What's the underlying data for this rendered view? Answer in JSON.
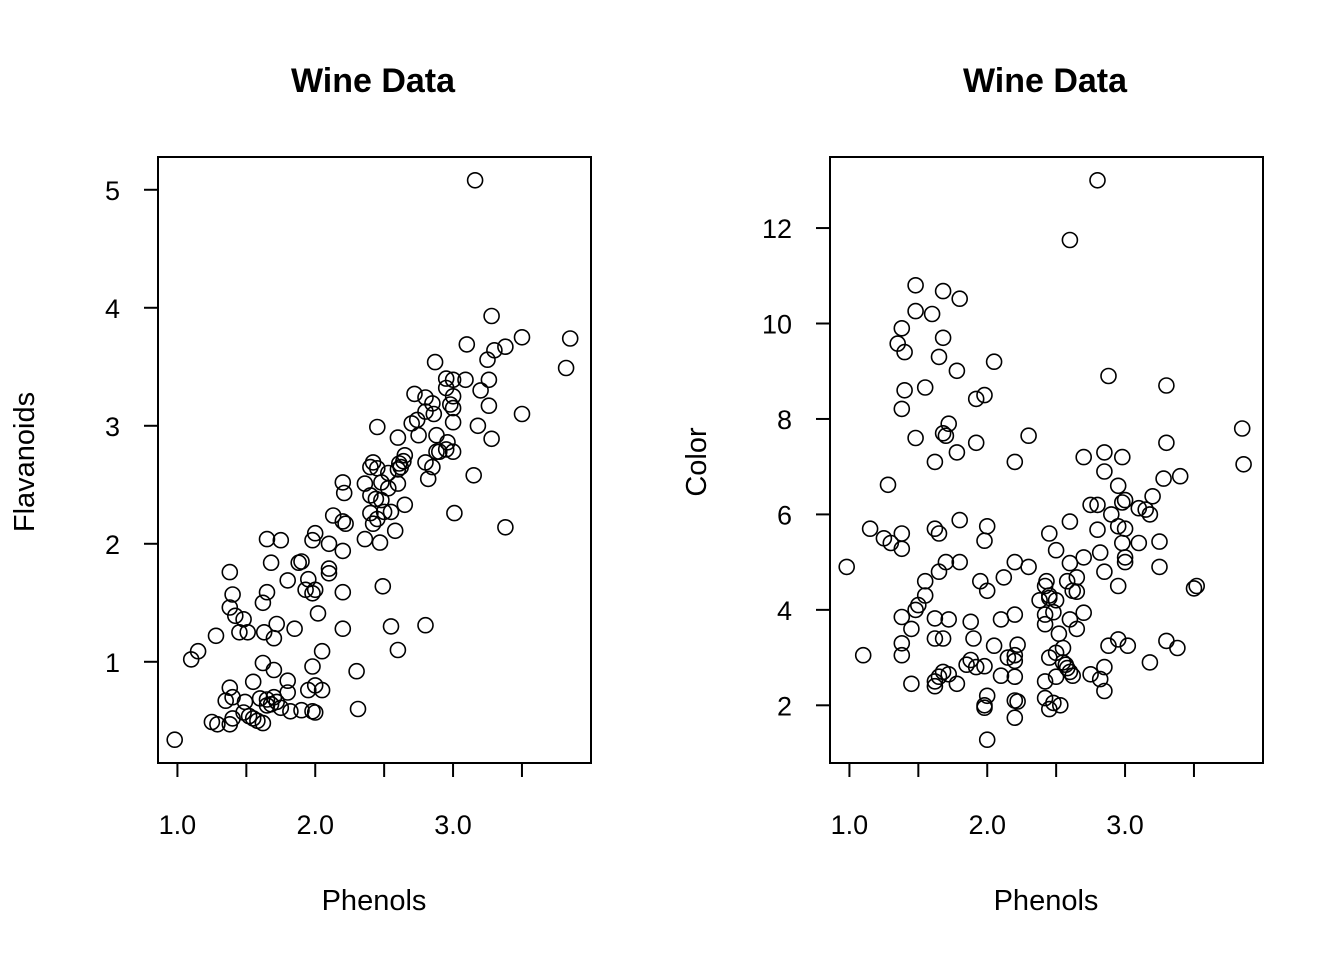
{
  "chart_data": [
    {
      "type": "scatter",
      "title": "Wine Data",
      "xlabel": "Phenols",
      "ylabel": "Flavanoids",
      "xlim": [
        0.98,
        3.88
      ],
      "ylim": [
        0.34,
        5.08
      ],
      "xticks": [
        1.0,
        1.5,
        2.0,
        2.5,
        3.0,
        3.5
      ],
      "xtick_labels": [
        "1.0",
        "",
        "2.0",
        "",
        "3.0",
        ""
      ],
      "yticks": [
        1,
        2,
        3,
        4,
        5
      ],
      "ytick_labels": [
        "1",
        "2",
        "3",
        "4",
        "5"
      ],
      "marker": "open-circle",
      "points": [
        [
          3.16,
          5.08
        ],
        [
          3.85,
          3.74
        ],
        [
          3.5,
          3.75
        ],
        [
          3.38,
          3.67
        ],
        [
          3.3,
          3.64
        ],
        [
          3.1,
          3.69
        ],
        [
          3.28,
          3.93
        ],
        [
          3.25,
          3.56
        ],
        [
          3.82,
          3.49
        ],
        [
          3.2,
          3.3
        ],
        [
          2.87,
          3.54
        ],
        [
          3.0,
          3.39
        ],
        [
          3.09,
          3.39
        ],
        [
          3.26,
          3.39
        ],
        [
          2.95,
          3.4
        ],
        [
          2.8,
          3.24
        ],
        [
          2.72,
          3.27
        ],
        [
          3.26,
          3.17
        ],
        [
          3.0,
          3.25
        ],
        [
          3.0,
          3.15
        ],
        [
          2.98,
          3.18
        ],
        [
          2.95,
          3.32
        ],
        [
          3.5,
          3.1
        ],
        [
          3.18,
          3.0
        ],
        [
          3.28,
          2.89
        ],
        [
          2.86,
          3.1
        ],
        [
          2.74,
          3.05
        ],
        [
          2.7,
          3.02
        ],
        [
          2.8,
          3.12
        ],
        [
          2.85,
          3.19
        ],
        [
          2.75,
          2.92
        ],
        [
          2.88,
          2.92
        ],
        [
          2.95,
          2.8
        ],
        [
          3.0,
          2.78
        ],
        [
          2.96,
          2.86
        ],
        [
          3.0,
          3.03
        ],
        [
          3.15,
          2.58
        ],
        [
          3.38,
          2.14
        ],
        [
          3.01,
          2.26
        ],
        [
          2.8,
          2.69
        ],
        [
          2.9,
          2.78
        ],
        [
          2.85,
          2.65
        ],
        [
          2.82,
          2.55
        ],
        [
          2.88,
          2.78
        ],
        [
          2.6,
          2.9
        ],
        [
          2.45,
          2.99
        ],
        [
          2.65,
          2.75
        ],
        [
          2.62,
          2.65
        ],
        [
          2.6,
          2.63
        ],
        [
          2.61,
          2.68
        ],
        [
          2.64,
          2.7
        ],
        [
          2.53,
          2.6
        ],
        [
          2.42,
          2.69
        ],
        [
          2.4,
          2.65
        ],
        [
          2.45,
          2.64
        ],
        [
          2.48,
          2.52
        ],
        [
          2.53,
          2.47
        ],
        [
          2.36,
          2.51
        ],
        [
          2.6,
          2.51
        ],
        [
          2.2,
          2.52
        ],
        [
          2.21,
          2.43
        ],
        [
          2.48,
          2.37
        ],
        [
          2.4,
          2.41
        ],
        [
          2.44,
          2.38
        ],
        [
          2.5,
          2.27
        ],
        [
          2.4,
          2.26
        ],
        [
          2.45,
          2.21
        ],
        [
          2.55,
          2.27
        ],
        [
          2.65,
          2.33
        ],
        [
          2.42,
          2.17
        ],
        [
          2.58,
          2.11
        ],
        [
          2.13,
          2.24
        ],
        [
          2.2,
          2.19
        ],
        [
          2.22,
          2.17
        ],
        [
          2.1,
          2.0
        ],
        [
          2.2,
          1.94
        ],
        [
          2.36,
          2.04
        ],
        [
          2.47,
          2.01
        ],
        [
          2.0,
          2.09
        ],
        [
          1.98,
          2.03
        ],
        [
          1.75,
          2.03
        ],
        [
          1.65,
          2.04
        ],
        [
          1.68,
          1.84
        ],
        [
          1.88,
          1.84
        ],
        [
          1.9,
          1.85
        ],
        [
          1.95,
          1.7
        ],
        [
          2.1,
          1.79
        ],
        [
          2.1,
          1.75
        ],
        [
          1.93,
          1.61
        ],
        [
          2.0,
          1.61
        ],
        [
          1.98,
          1.58
        ],
        [
          1.65,
          1.59
        ],
        [
          1.8,
          1.69
        ],
        [
          1.38,
          1.76
        ],
        [
          1.4,
          1.57
        ],
        [
          1.62,
          1.5
        ],
        [
          1.38,
          1.46
        ],
        [
          1.42,
          1.39
        ],
        [
          1.48,
          1.36
        ],
        [
          1.45,
          1.25
        ],
        [
          1.51,
          1.25
        ],
        [
          1.63,
          1.25
        ],
        [
          1.72,
          1.32
        ],
        [
          1.7,
          1.2
        ],
        [
          1.28,
          1.22
        ],
        [
          1.85,
          1.28
        ],
        [
          2.02,
          1.41
        ],
        [
          2.2,
          1.28
        ],
        [
          2.2,
          1.59
        ],
        [
          2.49,
          1.64
        ],
        [
          2.55,
          1.3
        ],
        [
          2.8,
          1.31
        ],
        [
          2.6,
          1.1
        ],
        [
          2.3,
          0.92
        ],
        [
          2.05,
          1.09
        ],
        [
          1.98,
          0.96
        ],
        [
          1.62,
          0.99
        ],
        [
          1.7,
          0.93
        ],
        [
          1.15,
          1.09
        ],
        [
          1.1,
          1.02
        ],
        [
          1.8,
          0.84
        ],
        [
          1.55,
          0.83
        ],
        [
          1.38,
          0.78
        ],
        [
          1.8,
          0.74
        ],
        [
          1.95,
          0.76
        ],
        [
          2.0,
          0.8
        ],
        [
          2.05,
          0.76
        ],
        [
          1.4,
          0.7
        ],
        [
          1.35,
          0.67
        ],
        [
          1.49,
          0.66
        ],
        [
          1.6,
          0.69
        ],
        [
          1.65,
          0.68
        ],
        [
          1.7,
          0.7
        ],
        [
          1.65,
          0.63
        ],
        [
          1.68,
          0.64
        ],
        [
          1.72,
          0.66
        ],
        [
          1.75,
          0.61
        ],
        [
          1.82,
          0.58
        ],
        [
          1.9,
          0.59
        ],
        [
          1.98,
          0.58
        ],
        [
          2.0,
          0.57
        ],
        [
          2.31,
          0.6
        ],
        [
          1.48,
          0.57
        ],
        [
          1.52,
          0.54
        ],
        [
          1.55,
          0.52
        ],
        [
          1.58,
          0.5
        ],
        [
          1.4,
          0.52
        ],
        [
          1.38,
          0.47
        ],
        [
          1.29,
          0.47
        ],
        [
          1.25,
          0.49
        ],
        [
          1.62,
          0.48
        ],
        [
          0.98,
          0.34
        ]
      ]
    },
    {
      "type": "scatter",
      "title": "Wine Data",
      "xlabel": "Phenols",
      "ylabel": "Color",
      "xlim": [
        0.98,
        3.88
      ],
      "ylim": [
        1.28,
        13.0
      ],
      "xticks": [
        1.0,
        1.5,
        2.0,
        2.5,
        3.0,
        3.5
      ],
      "xtick_labels": [
        "1.0",
        "",
        "2.0",
        "",
        "3.0",
        ""
      ],
      "yticks": [
        2,
        4,
        6,
        8,
        10,
        12
      ],
      "ytick_labels": [
        "2",
        "4",
        "6",
        "8",
        "10",
        "12"
      ],
      "marker": "open-circle",
      "points": [
        [
          2.8,
          13.0
        ],
        [
          2.6,
          11.75
        ],
        [
          1.48,
          10.8
        ],
        [
          1.68,
          10.68
        ],
        [
          1.8,
          10.52
        ],
        [
          1.48,
          10.26
        ],
        [
          1.6,
          10.2
        ],
        [
          1.38,
          9.9
        ],
        [
          1.35,
          9.58
        ],
        [
          1.4,
          9.4
        ],
        [
          1.65,
          9.3
        ],
        [
          2.05,
          9.2
        ],
        [
          1.68,
          9.7
        ],
        [
          1.78,
          9.01
        ],
        [
          2.88,
          8.9
        ],
        [
          1.55,
          8.66
        ],
        [
          1.4,
          8.6
        ],
        [
          1.92,
          8.42
        ],
        [
          1.98,
          8.5
        ],
        [
          3.3,
          8.7
        ],
        [
          1.38,
          8.21
        ],
        [
          1.72,
          7.9
        ],
        [
          1.68,
          7.7
        ],
        [
          1.7,
          7.65
        ],
        [
          1.48,
          7.6
        ],
        [
          1.92,
          7.5
        ],
        [
          2.3,
          7.65
        ],
        [
          1.78,
          7.3
        ],
        [
          1.62,
          7.1
        ],
        [
          2.2,
          7.1
        ],
        [
          2.7,
          7.2
        ],
        [
          2.85,
          7.3
        ],
        [
          2.98,
          7.2
        ],
        [
          3.3,
          7.5
        ],
        [
          3.85,
          7.8
        ],
        [
          3.86,
          7.05
        ],
        [
          2.85,
          6.9
        ],
        [
          1.28,
          6.62
        ],
        [
          2.95,
          6.6
        ],
        [
          3.4,
          6.8
        ],
        [
          3.28,
          6.75
        ],
        [
          3.2,
          6.38
        ],
        [
          2.75,
          6.2
        ],
        [
          2.8,
          6.2
        ],
        [
          2.98,
          6.25
        ],
        [
          3.0,
          6.3
        ],
        [
          3.1,
          6.13
        ],
        [
          3.15,
          6.1
        ],
        [
          3.18,
          6.0
        ],
        [
          2.9,
          6.0
        ],
        [
          1.8,
          5.88
        ],
        [
          2.6,
          5.85
        ],
        [
          2.0,
          5.75
        ],
        [
          1.62,
          5.7
        ],
        [
          1.15,
          5.7
        ],
        [
          1.65,
          5.6
        ],
        [
          2.45,
          5.6
        ],
        [
          2.95,
          5.75
        ],
        [
          3.0,
          5.7
        ],
        [
          2.8,
          5.68
        ],
        [
          1.25,
          5.5
        ],
        [
          1.3,
          5.4
        ],
        [
          1.38,
          5.6
        ],
        [
          1.38,
          5.28
        ],
        [
          1.98,
          5.45
        ],
        [
          2.5,
          5.25
        ],
        [
          2.82,
          5.2
        ],
        [
          2.98,
          5.4
        ],
        [
          3.1,
          5.4
        ],
        [
          3.25,
          5.43
        ],
        [
          2.7,
          5.1
        ],
        [
          3.0,
          5.1
        ],
        [
          3.0,
          5.0
        ],
        [
          1.7,
          5.0
        ],
        [
          1.8,
          5.0
        ],
        [
          2.2,
          5.0
        ],
        [
          2.6,
          4.98
        ],
        [
          2.3,
          4.9
        ],
        [
          0.98,
          4.9
        ],
        [
          3.25,
          4.9
        ],
        [
          1.65,
          4.8
        ],
        [
          2.85,
          4.8
        ],
        [
          2.12,
          4.68
        ],
        [
          2.65,
          4.68
        ],
        [
          1.55,
          4.6
        ],
        [
          2.43,
          4.6
        ],
        [
          2.58,
          4.6
        ],
        [
          2.42,
          4.5
        ],
        [
          2.95,
          4.5
        ],
        [
          3.5,
          4.45
        ],
        [
          3.52,
          4.5
        ],
        [
          1.95,
          4.6
        ],
        [
          2.0,
          4.4
        ],
        [
          2.62,
          4.4
        ],
        [
          2.65,
          4.38
        ],
        [
          2.45,
          4.3
        ],
        [
          2.5,
          4.2
        ],
        [
          2.38,
          4.2
        ],
        [
          1.55,
          4.3
        ],
        [
          2.45,
          4.25
        ],
        [
          1.5,
          4.1
        ],
        [
          1.48,
          4.0
        ],
        [
          2.48,
          3.95
        ],
        [
          2.42,
          3.9
        ],
        [
          2.7,
          3.94
        ],
        [
          2.2,
          3.9
        ],
        [
          1.38,
          3.85
        ],
        [
          1.62,
          3.82
        ],
        [
          1.72,
          3.8
        ],
        [
          1.88,
          3.75
        ],
        [
          2.1,
          3.8
        ],
        [
          2.42,
          3.7
        ],
        [
          2.6,
          3.8
        ],
        [
          2.65,
          3.6
        ],
        [
          1.45,
          3.6
        ],
        [
          1.62,
          3.4
        ],
        [
          1.68,
          3.4
        ],
        [
          1.9,
          3.4
        ],
        [
          2.52,
          3.5
        ],
        [
          2.95,
          3.38
        ],
        [
          3.3,
          3.35
        ],
        [
          3.02,
          3.25
        ],
        [
          3.38,
          3.2
        ],
        [
          2.88,
          3.25
        ],
        [
          1.38,
          3.3
        ],
        [
          1.38,
          3.05
        ],
        [
          2.05,
          3.25
        ],
        [
          2.22,
          3.27
        ],
        [
          2.55,
          3.2
        ],
        [
          2.5,
          3.1
        ],
        [
          2.45,
          3.0
        ],
        [
          2.15,
          3.0
        ],
        [
          2.2,
          3.05
        ],
        [
          2.2,
          2.93
        ],
        [
          1.1,
          3.05
        ],
        [
          1.88,
          2.95
        ],
        [
          1.92,
          2.8
        ],
        [
          1.85,
          2.85
        ],
        [
          1.98,
          2.82
        ],
        [
          2.55,
          2.9
        ],
        [
          2.57,
          2.85
        ],
        [
          2.58,
          2.78
        ],
        [
          2.6,
          2.7
        ],
        [
          2.75,
          2.65
        ],
        [
          2.82,
          2.55
        ],
        [
          2.85,
          2.8
        ],
        [
          3.18,
          2.9
        ],
        [
          1.68,
          2.7
        ],
        [
          1.72,
          2.65
        ],
        [
          1.65,
          2.6
        ],
        [
          2.1,
          2.62
        ],
        [
          2.2,
          2.6
        ],
        [
          2.42,
          2.5
        ],
        [
          2.5,
          2.6
        ],
        [
          2.62,
          2.62
        ],
        [
          1.62,
          2.4
        ],
        [
          1.62,
          2.5
        ],
        [
          1.45,
          2.45
        ],
        [
          1.78,
          2.45
        ],
        [
          2.85,
          2.3
        ],
        [
          2.0,
          2.2
        ],
        [
          2.42,
          2.15
        ],
        [
          1.98,
          2.0
        ],
        [
          2.48,
          2.05
        ],
        [
          2.53,
          2.0
        ],
        [
          2.2,
          2.1
        ],
        [
          2.22,
          2.08
        ],
        [
          2.45,
          1.92
        ],
        [
          1.98,
          1.95
        ],
        [
          2.2,
          1.74
        ],
        [
          2.0,
          1.28
        ]
      ]
    }
  ]
}
